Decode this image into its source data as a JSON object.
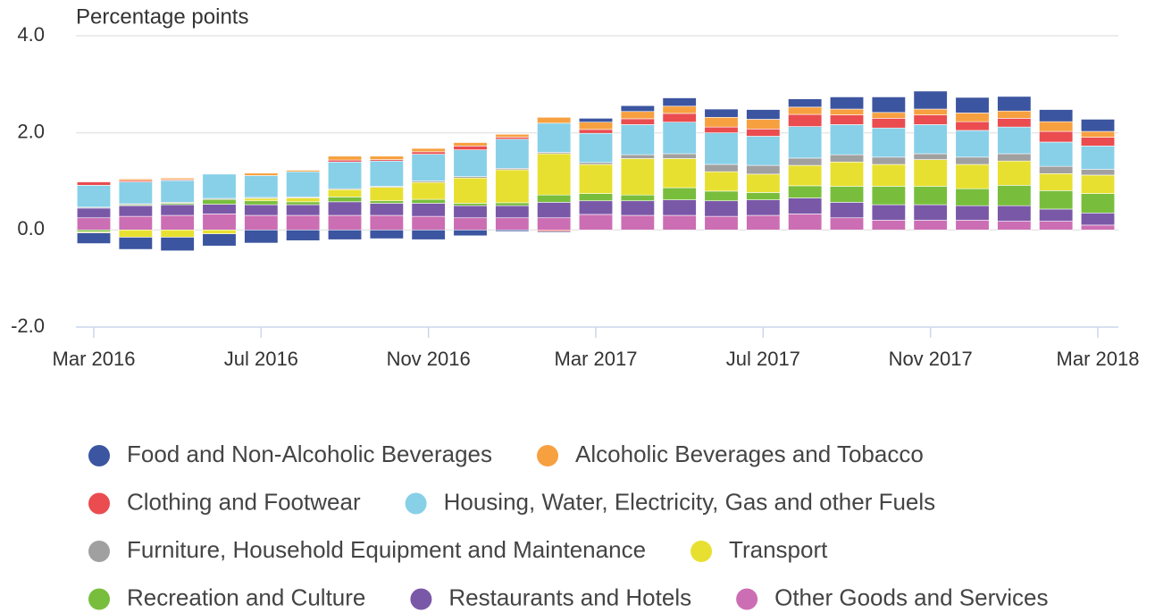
{
  "chart_data": {
    "type": "bar",
    "stacked": true,
    "y_axis_label": "Percentage points",
    "categories": [
      "Mar 2016",
      null,
      null,
      null,
      "Jul 2016",
      null,
      null,
      null,
      "Nov 2016",
      null,
      null,
      null,
      "Mar 2017",
      null,
      null,
      null,
      "Jul 2017",
      null,
      null,
      null,
      "Nov 2017",
      null,
      null,
      null,
      "Mar 2018"
    ],
    "ylim": [
      -2,
      4
    ],
    "yticks": [
      {
        "value": -2,
        "label": "-2.0"
      },
      {
        "value": 0,
        "label": "0.0"
      },
      {
        "value": 2,
        "label": "2.0"
      },
      {
        "value": 4,
        "label": "4.0"
      }
    ],
    "grid": true,
    "legend": "bottom",
    "series": [
      {
        "name": "Food and Non-Alcoholic Beverages",
        "color": "#3c55a0",
        "values": [
          -0.22,
          -0.25,
          -0.28,
          -0.25,
          -0.27,
          -0.22,
          -0.2,
          -0.18,
          -0.2,
          -0.12,
          -0.03,
          -0.02,
          0.08,
          0.12,
          0.17,
          0.17,
          0.2,
          0.17,
          0.25,
          0.32,
          0.37,
          0.32,
          0.3,
          0.25,
          0.25
        ]
      },
      {
        "name": "Alcoholic Beverages and Tobacco",
        "color": "#f7a040",
        "values": [
          0,
          0.03,
          0.03,
          0,
          0.05,
          0.03,
          0.08,
          0.07,
          0.07,
          0.07,
          0.06,
          0.12,
          0.15,
          0.15,
          0.15,
          0.2,
          0.2,
          0.15,
          0.12,
          0.12,
          0.12,
          0.18,
          0.15,
          0.2,
          0.12
        ]
      },
      {
        "name": "Clothing and Footwear",
        "color": "#ea4c50",
        "values": [
          0.07,
          0.03,
          0.02,
          0,
          0,
          0,
          0.04,
          0.03,
          0.05,
          0.08,
          0.04,
          -0.03,
          0.08,
          0.12,
          0.18,
          0.12,
          0.15,
          0.25,
          0.2,
          0.2,
          0.2,
          0.18,
          0.18,
          0.22,
          0.18
        ]
      },
      {
        "name": "Housing, Water, Electricity, Gas and other Fuels",
        "color": "#87d0e8",
        "values": [
          0.45,
          0.45,
          0.45,
          0.5,
          0.45,
          0.52,
          0.55,
          0.52,
          0.55,
          0.55,
          0.6,
          0.6,
          0.6,
          0.62,
          0.65,
          0.65,
          0.6,
          0.65,
          0.62,
          0.6,
          0.6,
          0.55,
          0.55,
          0.5,
          0.48
        ]
      },
      {
        "name": "Furniture, Household Equipment and Maintenance",
        "color": "#a0a0a0",
        "values": [
          0.02,
          0.02,
          0.02,
          0.02,
          0.02,
          0.02,
          0.02,
          0.02,
          0.03,
          0.03,
          0.03,
          0.03,
          0.04,
          0.08,
          0.1,
          0.15,
          0.18,
          0.15,
          0.15,
          0.15,
          0.12,
          0.15,
          0.15,
          0.15,
          0.12
        ]
      },
      {
        "name": "Transport",
        "color": "#e8e030",
        "values": [
          -0.02,
          -0.15,
          -0.15,
          -0.08,
          0.05,
          0.08,
          0.15,
          0.28,
          0.35,
          0.52,
          0.68,
          0.85,
          0.6,
          0.75,
          0.6,
          0.4,
          0.38,
          0.42,
          0.5,
          0.45,
          0.55,
          0.5,
          0.5,
          0.35,
          0.38
        ]
      },
      {
        "name": "Recreation and Culture",
        "color": "#78be3c",
        "values": [
          -0.04,
          0.02,
          0.03,
          0.1,
          0.08,
          0.06,
          0.1,
          0.05,
          0.08,
          0.05,
          0.06,
          0.15,
          0.15,
          0.12,
          0.25,
          0.2,
          0.15,
          0.25,
          0.33,
          0.38,
          0.38,
          0.35,
          0.42,
          0.38,
          0.4
        ]
      },
      {
        "name": "Restaurants and Hotels",
        "color": "#7a58a8",
        "values": [
          0.2,
          0.22,
          0.22,
          0.2,
          0.22,
          0.22,
          0.28,
          0.25,
          0.27,
          0.25,
          0.25,
          0.32,
          0.28,
          0.3,
          0.32,
          0.32,
          0.32,
          0.33,
          0.32,
          0.32,
          0.32,
          0.3,
          0.32,
          0.25,
          0.25
        ]
      },
      {
        "name": "Other Goods and Services",
        "color": "#cc6eb4",
        "values": [
          0.25,
          0.28,
          0.3,
          0.33,
          0.3,
          0.3,
          0.3,
          0.3,
          0.28,
          0.25,
          0.25,
          0.25,
          0.32,
          0.3,
          0.3,
          0.28,
          0.3,
          0.33,
          0.25,
          0.2,
          0.2,
          0.2,
          0.18,
          0.18,
          0.1
        ]
      }
    ]
  }
}
